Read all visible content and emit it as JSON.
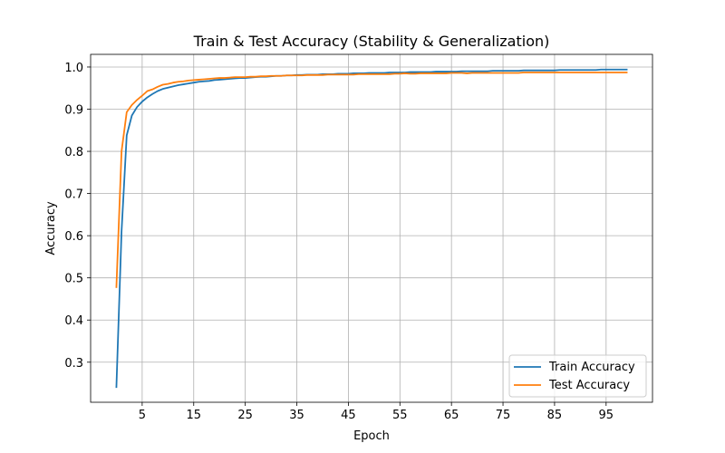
{
  "chart_data": {
    "type": "line",
    "title": "Train & Test Accuracy (Stability & Generalization)",
    "xlabel": "Epoch",
    "ylabel": "Accuracy",
    "xlim": [
      -5,
      104
    ],
    "ylim": [
      0.205,
      1.03
    ],
    "xticks": [
      5,
      15,
      25,
      35,
      45,
      55,
      65,
      75,
      85,
      95
    ],
    "yticks": [
      0.3,
      0.4,
      0.5,
      0.6,
      0.7,
      0.8,
      0.9,
      1.0
    ],
    "ytick_labels": [
      "0.3",
      "0.4",
      "0.5",
      "0.6",
      "0.7",
      "0.8",
      "0.9",
      "1.0"
    ],
    "grid": true,
    "legend_position": "bottom-right",
    "series": [
      {
        "name": "Train Accuracy",
        "color": "#1f77b4",
        "x": [
          0,
          1,
          2,
          3,
          4,
          5,
          6,
          7,
          8,
          9,
          10,
          11,
          12,
          13,
          14,
          15,
          16,
          17,
          18,
          19,
          20,
          21,
          22,
          23,
          24,
          25,
          26,
          27,
          28,
          29,
          30,
          31,
          32,
          33,
          34,
          35,
          36,
          37,
          38,
          39,
          40,
          41,
          42,
          43,
          44,
          45,
          46,
          47,
          48,
          49,
          50,
          51,
          52,
          53,
          54,
          55,
          56,
          57,
          58,
          59,
          60,
          61,
          62,
          63,
          64,
          65,
          66,
          67,
          68,
          69,
          70,
          71,
          72,
          73,
          74,
          75,
          76,
          77,
          78,
          79,
          80,
          81,
          82,
          83,
          84,
          85,
          86,
          87,
          88,
          89,
          90,
          91,
          92,
          93,
          94,
          95,
          96,
          97,
          98,
          99
        ],
        "values": [
          0.241,
          0.61,
          0.838,
          0.885,
          0.905,
          0.918,
          0.928,
          0.936,
          0.943,
          0.948,
          0.951,
          0.954,
          0.957,
          0.959,
          0.961,
          0.963,
          0.965,
          0.966,
          0.967,
          0.969,
          0.97,
          0.971,
          0.972,
          0.973,
          0.974,
          0.974,
          0.975,
          0.976,
          0.977,
          0.977,
          0.978,
          0.979,
          0.979,
          0.98,
          0.98,
          0.981,
          0.981,
          0.982,
          0.982,
          0.982,
          0.983,
          0.983,
          0.983,
          0.984,
          0.984,
          0.984,
          0.985,
          0.985,
          0.985,
          0.986,
          0.986,
          0.986,
          0.986,
          0.987,
          0.987,
          0.987,
          0.987,
          0.988,
          0.988,
          0.988,
          0.988,
          0.988,
          0.989,
          0.989,
          0.989,
          0.989,
          0.989,
          0.99,
          0.99,
          0.99,
          0.99,
          0.99,
          0.99,
          0.991,
          0.991,
          0.991,
          0.991,
          0.991,
          0.991,
          0.992,
          0.992,
          0.992,
          0.992,
          0.992,
          0.992,
          0.992,
          0.993,
          0.993,
          0.993,
          0.993,
          0.993,
          0.993,
          0.993,
          0.993,
          0.994,
          0.994,
          0.994,
          0.994,
          0.994,
          0.994
        ]
      },
      {
        "name": "Test Accuracy",
        "color": "#ff7f0e",
        "x": [
          0,
          1,
          2,
          3,
          4,
          5,
          6,
          7,
          8,
          9,
          10,
          11,
          12,
          13,
          14,
          15,
          16,
          17,
          18,
          19,
          20,
          21,
          22,
          23,
          24,
          25,
          26,
          27,
          28,
          29,
          30,
          31,
          32,
          33,
          34,
          35,
          36,
          37,
          38,
          39,
          40,
          41,
          42,
          43,
          44,
          45,
          46,
          47,
          48,
          49,
          50,
          51,
          52,
          53,
          54,
          55,
          56,
          57,
          58,
          59,
          60,
          61,
          62,
          63,
          64,
          65,
          66,
          67,
          68,
          69,
          70,
          71,
          72,
          73,
          74,
          75,
          76,
          77,
          78,
          79,
          80,
          81,
          82,
          83,
          84,
          85,
          86,
          87,
          88,
          89,
          90,
          91,
          92,
          93,
          94,
          95,
          96,
          97,
          98,
          99
        ],
        "values": [
          0.478,
          0.8,
          0.893,
          0.91,
          0.922,
          0.932,
          0.943,
          0.947,
          0.953,
          0.958,
          0.96,
          0.963,
          0.965,
          0.966,
          0.968,
          0.969,
          0.97,
          0.971,
          0.972,
          0.973,
          0.974,
          0.974,
          0.975,
          0.976,
          0.976,
          0.976,
          0.977,
          0.977,
          0.978,
          0.978,
          0.979,
          0.979,
          0.979,
          0.98,
          0.98,
          0.98,
          0.98,
          0.981,
          0.981,
          0.981,
          0.981,
          0.982,
          0.982,
          0.982,
          0.982,
          0.982,
          0.982,
          0.983,
          0.983,
          0.983,
          0.983,
          0.983,
          0.983,
          0.983,
          0.984,
          0.984,
          0.985,
          0.984,
          0.984,
          0.985,
          0.985,
          0.985,
          0.985,
          0.985,
          0.985,
          0.986,
          0.986,
          0.986,
          0.985,
          0.986,
          0.986,
          0.986,
          0.986,
          0.986,
          0.986,
          0.986,
          0.986,
          0.986,
          0.986,
          0.987,
          0.987,
          0.987,
          0.987,
          0.987,
          0.987,
          0.987,
          0.987,
          0.987,
          0.987,
          0.987,
          0.987,
          0.987,
          0.987,
          0.987,
          0.987,
          0.987,
          0.987,
          0.987,
          0.987,
          0.987
        ]
      }
    ]
  }
}
